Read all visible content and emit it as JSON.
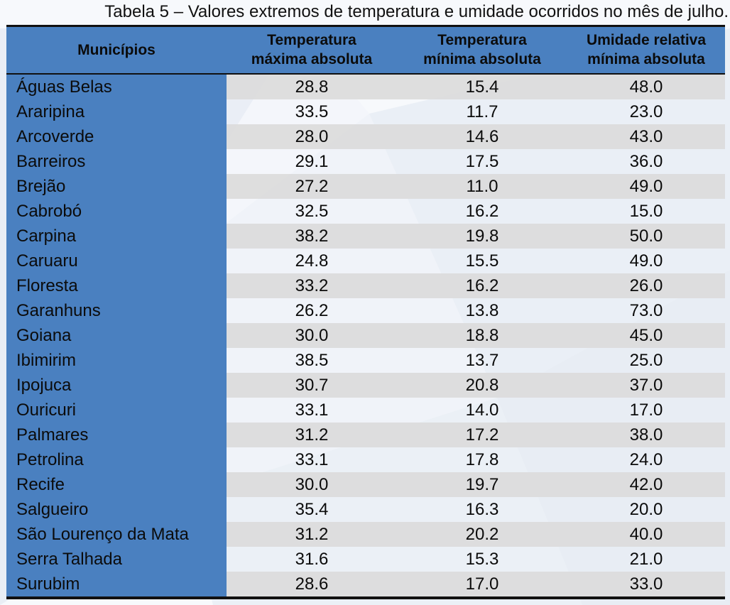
{
  "caption": "Tabela 5 – Valores extremos de temperatura e umidade ocorridos no mês de julho.",
  "headers": {
    "municipios": "Municípios",
    "tmax_line1": "Temperatura",
    "tmax_line2": "máxima absoluta",
    "tmin_line1": "Temperatura",
    "tmin_line2": "mínima absoluta",
    "umid_line1": "Umidade relativa",
    "umid_line2": "mínima absoluta"
  },
  "rows": [
    {
      "municipio": "Águas Belas",
      "tmax": "28.8",
      "tmin": "15.4",
      "umid": "48.0"
    },
    {
      "municipio": "Araripina",
      "tmax": "33.5",
      "tmin": "11.7",
      "umid": "23.0"
    },
    {
      "municipio": "Arcoverde",
      "tmax": "28.0",
      "tmin": "14.6",
      "umid": "43.0"
    },
    {
      "municipio": "Barreiros",
      "tmax": "29.1",
      "tmin": "17.5",
      "umid": "36.0"
    },
    {
      "municipio": "Brejão",
      "tmax": "27.2",
      "tmin": "11.0",
      "umid": "49.0"
    },
    {
      "municipio": "Cabrobó",
      "tmax": "32.5",
      "tmin": "16.2",
      "umid": "15.0"
    },
    {
      "municipio": "Carpina",
      "tmax": "38.2",
      "tmin": "19.8",
      "umid": "50.0"
    },
    {
      "municipio": "Caruaru",
      "tmax": "24.8",
      "tmin": "15.5",
      "umid": "49.0"
    },
    {
      "municipio": "Floresta",
      "tmax": "33.2",
      "tmin": "16.2",
      "umid": "26.0"
    },
    {
      "municipio": "Garanhuns",
      "tmax": "26.2",
      "tmin": "13.8",
      "umid": "73.0"
    },
    {
      "municipio": "Goiana",
      "tmax": "30.0",
      "tmin": "18.8",
      "umid": "45.0"
    },
    {
      "municipio": "Ibimirim",
      "tmax": "38.5",
      "tmin": "13.7",
      "umid": "25.0"
    },
    {
      "municipio": "Ipojuca",
      "tmax": "30.7",
      "tmin": "20.8",
      "umid": "37.0"
    },
    {
      "municipio": "Ouricuri",
      "tmax": "33.1",
      "tmin": "14.0",
      "umid": "17.0"
    },
    {
      "municipio": "Palmares",
      "tmax": "31.2",
      "tmin": "17.2",
      "umid": "38.0"
    },
    {
      "municipio": "Petrolina",
      "tmax": "33.1",
      "tmin": "17.8",
      "umid": "24.0"
    },
    {
      "municipio": "Recife",
      "tmax": "30.0",
      "tmin": "19.7",
      "umid": "42.0"
    },
    {
      "municipio": "Salgueiro",
      "tmax": "35.4",
      "tmin": "16.3",
      "umid": "20.0"
    },
    {
      "municipio": "São Lourenço da Mata",
      "tmax": "31.2",
      "tmin": "20.2",
      "umid": "40.0"
    },
    {
      "municipio": "Serra Talhada",
      "tmax": "31.6",
      "tmin": "15.3",
      "umid": "21.0"
    },
    {
      "municipio": "Surubim",
      "tmax": "28.6",
      "tmin": "17.0",
      "umid": "33.0"
    }
  ],
  "colors": {
    "header_blue": "#4a80c0",
    "band_gray": "#dbdbdb",
    "text": "#0b0b0b",
    "background_pattern": "#e9eef6"
  }
}
